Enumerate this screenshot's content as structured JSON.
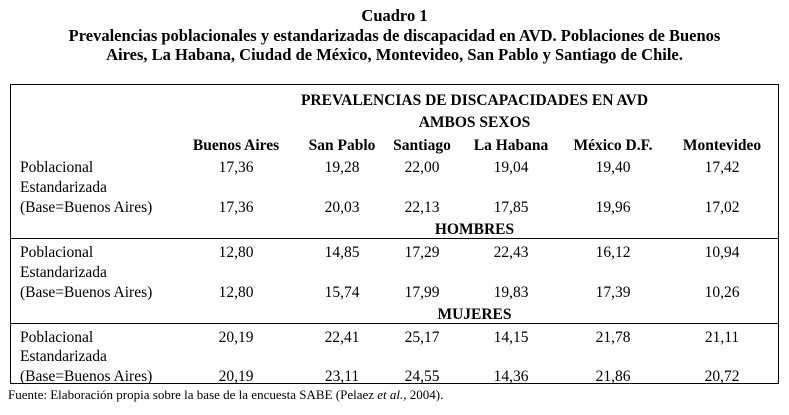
{
  "caption": {
    "line1": "Cuadro 1",
    "line2": "Prevalencias poblacionales y estandarizadas de discapacidad en AVD. Poblaciones de Buenos",
    "line3": "Aires, La Habana, Ciudad de México, Montevideo, San Pablo y Santiago de Chile."
  },
  "table": {
    "header": "PREVALENCIAS DE DISCAPACIDADES EN AVD",
    "columns": [
      "Buenos Aires",
      "San Pablo",
      "Santiago",
      "La Habana",
      "México D.F.",
      "Montevideo"
    ],
    "row_labels": [
      "Poblacional",
      "Estandarizada",
      "(Base=Buenos Aires)"
    ],
    "sections": [
      {
        "title": "AMBOS SEXOS",
        "poblacional": [
          "17,36",
          "19,28",
          "22,00",
          "19,04",
          "19,40",
          "17,42"
        ],
        "estandarizada": [
          "17,36",
          "20,03",
          "22,13",
          "17,85",
          "19,96",
          "17,02"
        ]
      },
      {
        "title": "HOMBRES",
        "poblacional": [
          "12,80",
          "14,85",
          "17,29",
          "22,43",
          "16,12",
          "10,94"
        ],
        "estandarizada": [
          "12,80",
          "15,74",
          "17,99",
          "19,83",
          "17,39",
          "10,26"
        ]
      },
      {
        "title": "MUJERES",
        "poblacional": [
          "20,19",
          "22,41",
          "25,17",
          "14,15",
          "21,78",
          "21,11"
        ],
        "estandarizada": [
          "20,19",
          "23,11",
          "24,55",
          "14,36",
          "21,86",
          "20,72"
        ]
      }
    ]
  },
  "footer": {
    "prefix": "Fuente: Elaboración propia sobre la base de la encuesta SABE (Pelaez ",
    "italic": "et al.",
    "suffix": ", 2004)."
  }
}
